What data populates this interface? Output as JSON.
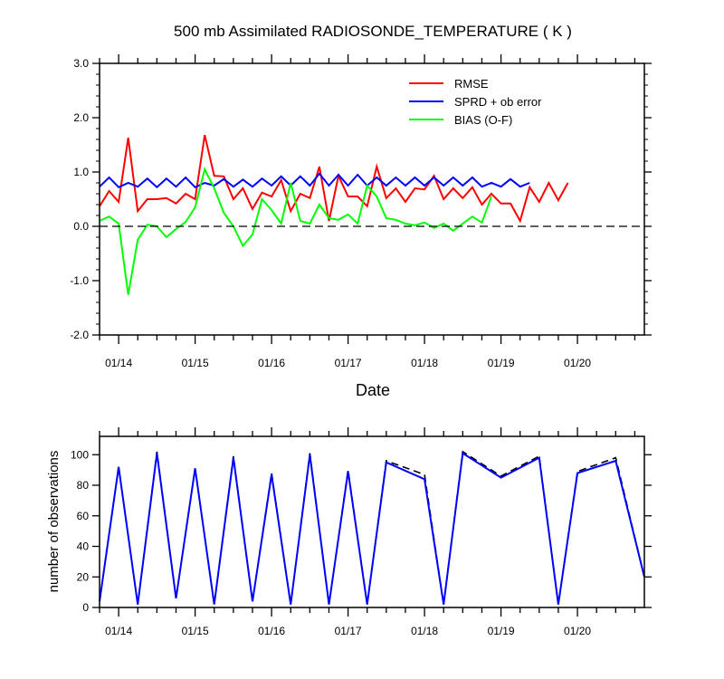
{
  "chart_data": [
    {
      "type": "line",
      "title": "500 mb Assimilated RADIOSONDE_TEMPERATURE ( K )",
      "xlabel": "Date",
      "ylabel": "",
      "x_type": "datetime",
      "xlim": [
        "01/13 18Z",
        "01/20 21Z"
      ],
      "ylim": [
        -2.0,
        3.0
      ],
      "y_ticks": [
        "-2.0",
        "-1.0",
        "0.0",
        "1.0",
        "2.0",
        "3.0"
      ],
      "x_tick_labels": [
        "01/14",
        "01/15",
        "01/16",
        "01/17",
        "01/18",
        "01/19",
        "01/20"
      ],
      "grid": false,
      "legend_position": "top-right",
      "zero_line": {
        "y": 0,
        "style": "dashed",
        "color": "#000000"
      },
      "series": [
        {
          "name": "RMSE",
          "color": "#ff0000",
          "points": [
            [
              "01/13 18Z",
              0.37
            ],
            [
              "01/13 21Z",
              0.65
            ],
            [
              "01/14 00Z",
              0.45
            ],
            [
              "01/14 03Z",
              1.63
            ],
            [
              "01/14 06Z",
              0.28
            ],
            [
              "01/14 09Z",
              0.5
            ],
            [
              "01/14 12Z",
              0.5
            ],
            [
              "01/14 15Z",
              0.52
            ],
            [
              "01/14 18Z",
              0.42
            ],
            [
              "01/14 21Z",
              0.6
            ],
            [
              "01/15 00Z",
              0.5
            ],
            [
              "01/15 03Z",
              1.68
            ],
            [
              "01/15 06Z",
              0.93
            ],
            [
              "01/15 09Z",
              0.92
            ],
            [
              "01/15 12Z",
              0.5
            ],
            [
              "01/15 15Z",
              0.7
            ],
            [
              "01/15 18Z",
              0.32
            ],
            [
              "01/15 21Z",
              0.62
            ],
            [
              "01/16 00Z",
              0.55
            ],
            [
              "01/16 03Z",
              0.85
            ],
            [
              "01/16 06Z",
              0.28
            ],
            [
              "01/16 09Z",
              0.6
            ],
            [
              "01/16 12Z",
              0.52
            ],
            [
              "01/16 15Z",
              1.1
            ],
            [
              "01/16 18Z",
              0.1
            ],
            [
              "01/16 21Z",
              0.93
            ],
            [
              "01/17 00Z",
              0.55
            ],
            [
              "01/17 03Z",
              0.55
            ],
            [
              "01/17 06Z",
              0.37
            ],
            [
              "01/17 09Z",
              1.1
            ],
            [
              "01/17 12Z",
              0.52
            ],
            [
              "01/17 15Z",
              0.7
            ],
            [
              "01/17 18Z",
              0.45
            ],
            [
              "01/17 21Z",
              0.7
            ],
            [
              "01/18 00Z",
              0.68
            ],
            [
              "01/18 03Z",
              0.93
            ],
            [
              "01/18 06Z",
              0.5
            ],
            [
              "01/18 09Z",
              0.7
            ],
            [
              "01/18 12Z",
              0.52
            ],
            [
              "01/18 15Z",
              0.72
            ],
            [
              "01/18 18Z",
              0.4
            ],
            [
              "01/18 21Z",
              0.6
            ],
            [
              "01/19 00Z",
              0.42
            ],
            [
              "01/19 03Z",
              0.42
            ],
            [
              "01/19 06Z",
              0.1
            ],
            [
              "01/19 09Z",
              0.72
            ],
            [
              "01/19 12Z",
              0.45
            ],
            [
              "01/19 15Z",
              0.8
            ],
            [
              "01/19 18Z",
              0.48
            ],
            [
              "01/19 21Z",
              0.8
            ]
          ]
        },
        {
          "name": "SPRD + ob error",
          "color": "#0000ff",
          "points": [
            [
              "01/13 18Z",
              0.73
            ],
            [
              "01/13 21Z",
              0.9
            ],
            [
              "01/14 00Z",
              0.72
            ],
            [
              "01/14 03Z",
              0.8
            ],
            [
              "01/14 06Z",
              0.73
            ],
            [
              "01/14 09Z",
              0.88
            ],
            [
              "01/14 12Z",
              0.72
            ],
            [
              "01/14 15Z",
              0.88
            ],
            [
              "01/14 18Z",
              0.73
            ],
            [
              "01/14 21Z",
              0.9
            ],
            [
              "01/15 00Z",
              0.72
            ],
            [
              "01/15 03Z",
              0.8
            ],
            [
              "01/15 06Z",
              0.75
            ],
            [
              "01/15 09Z",
              0.87
            ],
            [
              "01/15 12Z",
              0.73
            ],
            [
              "01/15 15Z",
              0.86
            ],
            [
              "01/15 18Z",
              0.73
            ],
            [
              "01/15 21Z",
              0.88
            ],
            [
              "01/16 00Z",
              0.75
            ],
            [
              "01/16 03Z",
              0.92
            ],
            [
              "01/16 06Z",
              0.75
            ],
            [
              "01/16 09Z",
              0.92
            ],
            [
              "01/16 12Z",
              0.75
            ],
            [
              "01/16 15Z",
              0.97
            ],
            [
              "01/16 18Z",
              0.75
            ],
            [
              "01/16 21Z",
              0.95
            ],
            [
              "01/17 00Z",
              0.75
            ],
            [
              "01/17 03Z",
              0.95
            ],
            [
              "01/17 06Z",
              0.75
            ],
            [
              "01/17 09Z",
              0.9
            ],
            [
              "01/17 12Z",
              0.75
            ],
            [
              "01/17 15Z",
              0.9
            ],
            [
              "01/17 18Z",
              0.75
            ],
            [
              "01/17 21Z",
              0.9
            ],
            [
              "01/18 00Z",
              0.75
            ],
            [
              "01/18 03Z",
              0.9
            ],
            [
              "01/18 06Z",
              0.75
            ],
            [
              "01/18 09Z",
              0.9
            ],
            [
              "01/18 12Z",
              0.75
            ],
            [
              "01/18 15Z",
              0.9
            ],
            [
              "01/18 18Z",
              0.73
            ],
            [
              "01/18 21Z",
              0.8
            ],
            [
              "01/19 00Z",
              0.73
            ],
            [
              "01/19 03Z",
              0.87
            ],
            [
              "01/19 06Z",
              0.73
            ],
            [
              "01/19 09Z",
              0.8
            ]
          ]
        },
        {
          "name": "BIAS (O-F)",
          "color": "#00ff00",
          "points": [
            [
              "01/13 18Z",
              0.1
            ],
            [
              "01/13 21Z",
              0.18
            ],
            [
              "01/14 00Z",
              0.05
            ],
            [
              "01/14 03Z",
              -1.26
            ],
            [
              "01/14 06Z",
              -0.25
            ],
            [
              "01/14 09Z",
              0.03
            ],
            [
              "01/14 12Z",
              0.0
            ],
            [
              "01/14 15Z",
              -0.2
            ],
            [
              "01/14 18Z",
              -0.05
            ],
            [
              "01/14 21Z",
              0.08
            ],
            [
              "01/15 00Z",
              0.35
            ],
            [
              "01/15 03Z",
              1.05
            ],
            [
              "01/15 06Z",
              0.7
            ],
            [
              "01/15 09Z",
              0.25
            ],
            [
              "01/15 12Z",
              0.0
            ],
            [
              "01/15 15Z",
              -0.36
            ],
            [
              "01/15 18Z",
              -0.15
            ],
            [
              "01/15 21Z",
              0.5
            ],
            [
              "01/16 00Z",
              0.3
            ],
            [
              "01/16 03Z",
              0.05
            ],
            [
              "01/16 06Z",
              0.8
            ],
            [
              "01/16 09Z",
              0.1
            ],
            [
              "01/16 12Z",
              0.05
            ],
            [
              "01/16 15Z",
              0.4
            ],
            [
              "01/16 18Z",
              0.15
            ],
            [
              "01/16 21Z",
              0.12
            ],
            [
              "01/17 00Z",
              0.22
            ],
            [
              "01/17 03Z",
              0.05
            ],
            [
              "01/17 06Z",
              0.75
            ],
            [
              "01/17 09Z",
              0.55
            ],
            [
              "01/17 12Z",
              0.15
            ],
            [
              "01/17 15Z",
              0.12
            ],
            [
              "01/17 18Z",
              0.05
            ],
            [
              "01/17 21Z",
              0.02
            ],
            [
              "01/18 00Z",
              0.07
            ],
            [
              "01/18 03Z",
              -0.03
            ],
            [
              "01/18 06Z",
              0.05
            ],
            [
              "01/18 09Z",
              -0.08
            ],
            [
              "01/18 12Z",
              0.05
            ],
            [
              "01/18 15Z",
              0.18
            ],
            [
              "01/18 18Z",
              0.07
            ],
            [
              "01/18 21Z",
              0.55
            ]
          ]
        }
      ]
    },
    {
      "type": "line",
      "title": "",
      "xlabel": "",
      "ylabel": "number of observations",
      "x_type": "datetime",
      "xlim": [
        "01/13 18Z",
        "01/20 21Z"
      ],
      "ylim": [
        0,
        112
      ],
      "y_ticks": [
        "0",
        "20",
        "40",
        "60",
        "80",
        "100"
      ],
      "x_tick_labels": [
        "01/14",
        "01/15",
        "01/16",
        "01/17",
        "01/18",
        "01/19",
        "01/20"
      ],
      "grid": false,
      "series": [
        {
          "style": "dashed",
          "color": "#000000",
          "points": [
            [
              "01/13 18Z",
              4
            ],
            [
              "01/14 00Z",
              92
            ],
            [
              "01/14 06Z",
              2
            ],
            [
              "01/14 12Z",
              102
            ],
            [
              "01/14 18Z",
              6
            ],
            [
              "01/15 00Z",
              91
            ],
            [
              "01/15 06Z",
              2
            ],
            [
              "01/15 12Z",
              99
            ],
            [
              "01/15 18Z",
              4
            ],
            [
              "01/16 00Z",
              88
            ],
            [
              "01/16 06Z",
              2
            ],
            [
              "01/16 12Z",
              101
            ],
            [
              "01/16 18Z",
              2
            ],
            [
              "01/17 00Z",
              90
            ],
            [
              "01/17 06Z",
              2
            ],
            [
              "01/17 12Z",
              96
            ],
            [
              "01/18 00Z",
              87
            ],
            [
              "01/18 06Z",
              2
            ],
            [
              "01/18 12Z",
              102
            ],
            [
              "01/19 00Z",
              86
            ],
            [
              "01/19 12Z",
              99
            ],
            [
              "01/19 18Z",
              2
            ],
            [
              "01/20 00Z",
              89
            ],
            [
              "01/20 12Z",
              98
            ],
            [
              "01/20 21Z",
              20
            ]
          ]
        },
        {
          "style": "solid",
          "color": "#0000ff",
          "points": [
            [
              "01/13 18Z",
              4
            ],
            [
              "01/14 00Z",
              92
            ],
            [
              "01/14 06Z",
              2
            ],
            [
              "01/14 12Z",
              101
            ],
            [
              "01/14 18Z",
              6
            ],
            [
              "01/15 00Z",
              91
            ],
            [
              "01/15 06Z",
              2
            ],
            [
              "01/15 12Z",
              98
            ],
            [
              "01/15 18Z",
              4
            ],
            [
              "01/16 00Z",
              87
            ],
            [
              "01/16 06Z",
              2
            ],
            [
              "01/16 12Z",
              100
            ],
            [
              "01/16 18Z",
              2
            ],
            [
              "01/17 00Z",
              89
            ],
            [
              "01/17 06Z",
              2
            ],
            [
              "01/17 12Z",
              95
            ],
            [
              "01/18 00Z",
              84
            ],
            [
              "01/18 06Z",
              2
            ],
            [
              "01/18 12Z",
              101
            ],
            [
              "01/19 00Z",
              85
            ],
            [
              "01/19 12Z",
              98
            ],
            [
              "01/19 18Z",
              2
            ],
            [
              "01/20 00Z",
              88
            ],
            [
              "01/20 12Z",
              96
            ],
            [
              "01/20 21Z",
              20
            ]
          ]
        }
      ]
    }
  ]
}
